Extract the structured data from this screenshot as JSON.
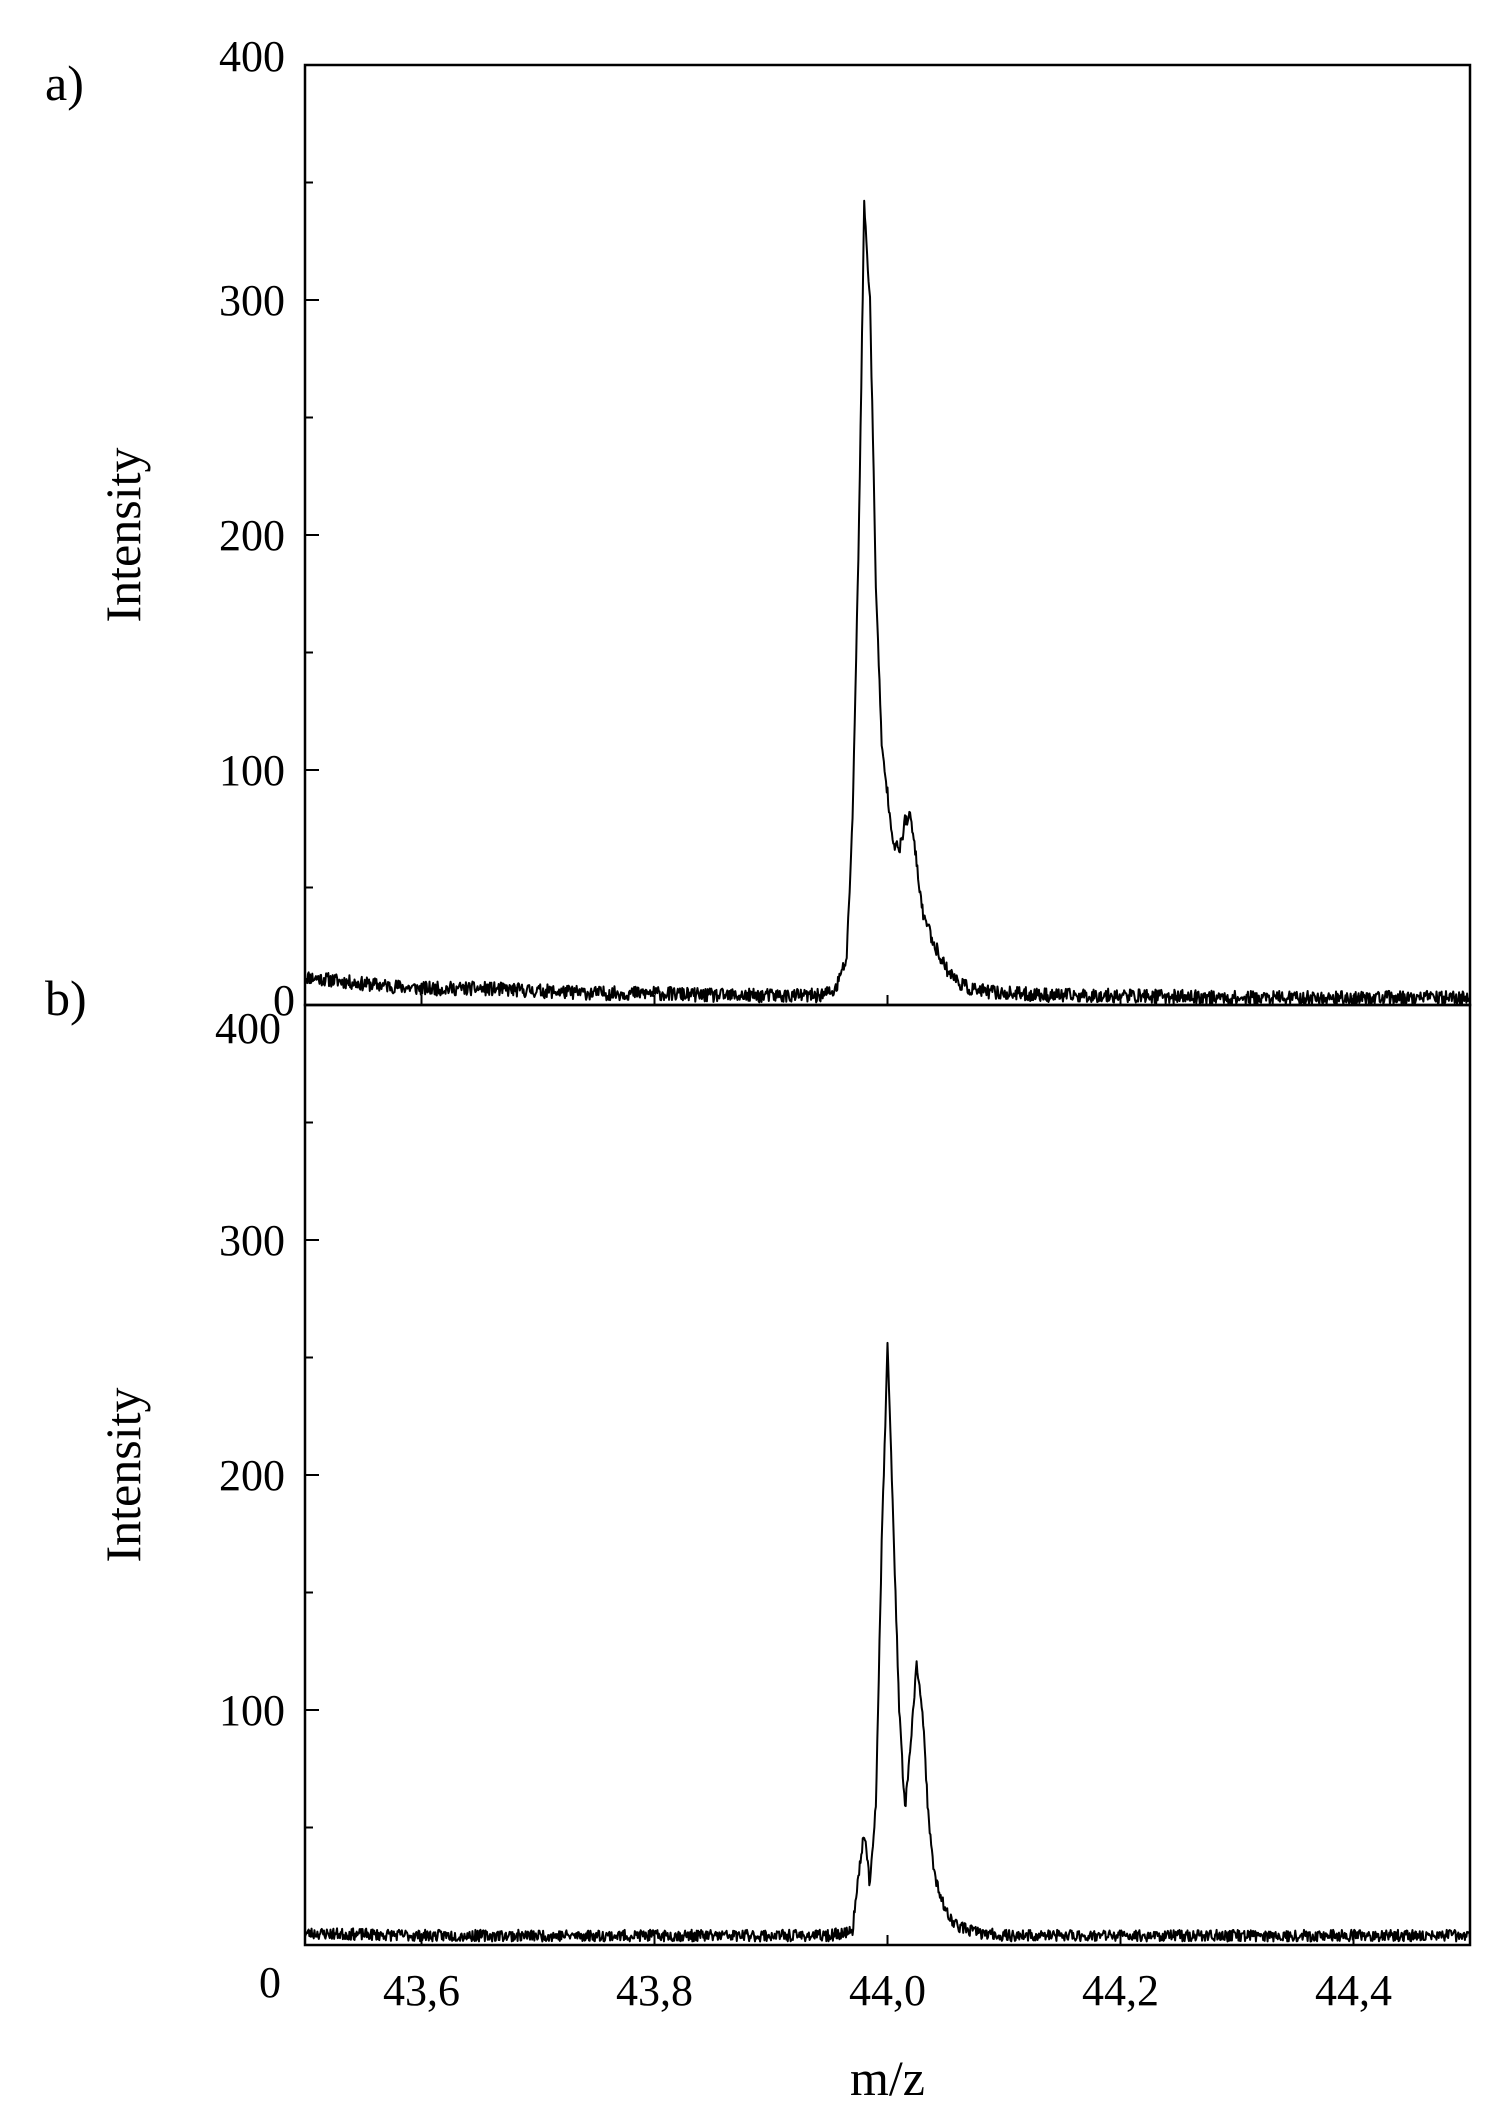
{
  "figure": {
    "xlabel": "m/z",
    "ylabel": "Intensity",
    "line_color": "#000000",
    "background": "#ffffff"
  },
  "chart_data": [
    {
      "type": "line",
      "panel_label": "a)",
      "xlabel": "",
      "ylabel": "Intensity",
      "xlim": [
        43.5,
        44.5
      ],
      "ylim": [
        0,
        400
      ],
      "yticks": [
        0,
        100,
        200,
        300,
        400
      ],
      "yticklabels": [
        "0",
        "100",
        "200",
        "300",
        "400"
      ],
      "xticks": [
        43.6,
        43.8,
        44.0,
        44.2,
        44.4
      ],
      "xticklabels": [],
      "grid": false,
      "noise": {
        "seed": 11,
        "amplitude": 3
      },
      "series": [
        {
          "x": [
            43.5,
            43.55,
            43.6,
            43.65,
            43.7,
            43.75,
            43.8,
            43.85,
            43.9,
            43.94,
            43.955,
            43.965,
            43.97,
            43.975,
            43.98,
            43.985,
            43.99,
            43.995,
            44.0,
            44.005,
            44.01,
            44.015,
            44.02,
            44.025,
            44.03,
            44.04,
            44.05,
            44.06,
            44.07,
            44.08,
            44.1,
            44.15,
            44.2,
            44.3,
            44.4,
            44.5
          ],
          "y": [
            12,
            9,
            7,
            7,
            6,
            5,
            5,
            4,
            4,
            4,
            6,
            20,
            80,
            190,
            340,
            300,
            180,
            110,
            90,
            70,
            65,
            78,
            80,
            60,
            40,
            26,
            16,
            10,
            7,
            6,
            5,
            4,
            4,
            3,
            3,
            3
          ]
        }
      ]
    },
    {
      "type": "line",
      "panel_label": "b)",
      "xlabel": "m/z",
      "ylabel": "Intensity",
      "xlim": [
        43.5,
        44.5
      ],
      "ylim": [
        0,
        400
      ],
      "yticks": [
        0,
        100,
        200,
        300,
        400
      ],
      "yticklabels": [
        "0",
        "100",
        "200",
        "300",
        "400"
      ],
      "xticks": [
        43.6,
        43.8,
        44.0,
        44.2,
        44.4
      ],
      "xticklabels": [
        "43,6",
        "43,8",
        "44,0",
        "44,2",
        "44,4"
      ],
      "grid": false,
      "noise": {
        "seed": 23,
        "amplitude": 2.5
      },
      "series": [
        {
          "x": [
            43.5,
            43.6,
            43.7,
            43.8,
            43.9,
            43.95,
            43.97,
            43.975,
            43.98,
            43.985,
            43.99,
            43.995,
            44.0,
            44.005,
            44.01,
            44.015,
            44.02,
            44.025,
            44.03,
            44.035,
            44.04,
            44.05,
            44.06,
            44.08,
            44.1,
            44.2,
            44.3,
            44.4,
            44.5
          ],
          "y": [
            5,
            4,
            4,
            4,
            4,
            4,
            6,
            30,
            48,
            25,
            60,
            170,
            255,
            180,
            100,
            58,
            85,
            120,
            100,
            55,
            30,
            14,
            8,
            5,
            4,
            4,
            4,
            4,
            4
          ]
        }
      ]
    }
  ]
}
